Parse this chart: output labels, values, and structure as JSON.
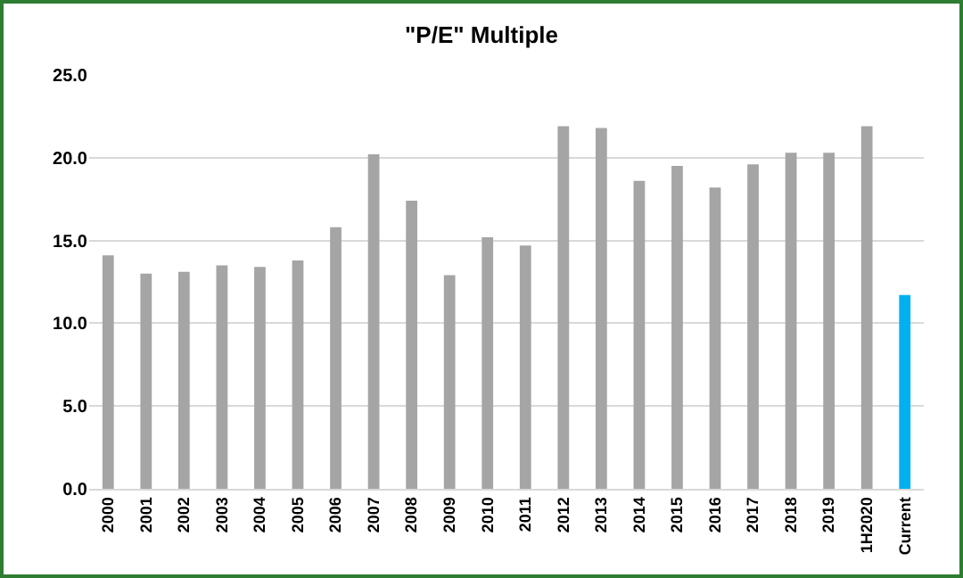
{
  "chart_data": {
    "type": "bar",
    "title": "\"P/E\" Multiple",
    "categories": [
      "2000",
      "2001",
      "2002",
      "2003",
      "2004",
      "2005",
      "2006",
      "2007",
      "2008",
      "2009",
      "2010",
      "2011",
      "2012",
      "2013",
      "2014",
      "2015",
      "2016",
      "2017",
      "2018",
      "2019",
      "1H2020",
      "Current"
    ],
    "values": [
      14.1,
      13.0,
      13.1,
      13.5,
      13.4,
      13.8,
      15.8,
      20.2,
      17.4,
      12.9,
      15.2,
      14.7,
      21.9,
      21.8,
      18.6,
      19.5,
      18.2,
      19.6,
      20.3,
      20.3,
      21.9,
      11.7
    ],
    "colors": [
      "#a5a5a5",
      "#a5a5a5",
      "#a5a5a5",
      "#a5a5a5",
      "#a5a5a5",
      "#a5a5a5",
      "#a5a5a5",
      "#a5a5a5",
      "#a5a5a5",
      "#a5a5a5",
      "#a5a5a5",
      "#a5a5a5",
      "#a5a5a5",
      "#a5a5a5",
      "#a5a5a5",
      "#a5a5a5",
      "#a5a5a5",
      "#a5a5a5",
      "#a5a5a5",
      "#a5a5a5",
      "#a5a5a5",
      "#00b0f0"
    ],
    "ylim": [
      0,
      25
    ],
    "yticks": [
      {
        "value": 0,
        "label": "0.0"
      },
      {
        "value": 5,
        "label": "5.0"
      },
      {
        "value": 10,
        "label": "10.0"
      },
      {
        "value": 15,
        "label": "15.0"
      },
      {
        "value": 20,
        "label": "20.0"
      },
      {
        "value": 25,
        "label": "25.0"
      }
    ],
    "grid": "y"
  }
}
